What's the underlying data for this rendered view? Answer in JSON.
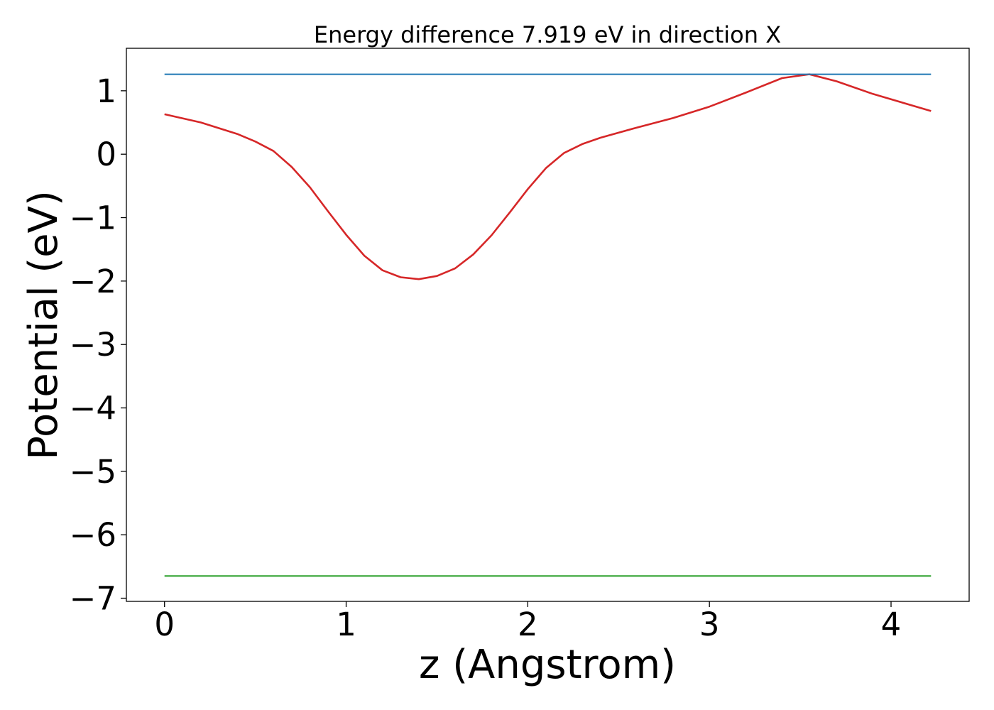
{
  "chart_data": {
    "type": "line",
    "title": "Energy difference 7.919 eV in direction X",
    "xlabel": "z (Angstrom)",
    "ylabel": "Potential (eV)",
    "xlim": [
      -0.21,
      4.43
    ],
    "ylim": [
      -7.05,
      1.67
    ],
    "xticks": [
      0,
      1,
      2,
      3,
      4
    ],
    "xtick_labels": [
      "0",
      "1",
      "2",
      "3",
      "4"
    ],
    "yticks": [
      1,
      0,
      -1,
      -2,
      -3,
      -4,
      -5,
      -6,
      -7
    ],
    "ytick_labels": [
      "1",
      "0",
      "−1",
      "−2",
      "−3",
      "−4",
      "−5",
      "−6",
      "−7"
    ],
    "grid": false,
    "legend": "none",
    "series": [
      {
        "color": "#d62728",
        "x": [
          0,
          0.2,
          0.4,
          0.5,
          0.6,
          0.7,
          0.8,
          0.9,
          1.0,
          1.1,
          1.2,
          1.3,
          1.4,
          1.5,
          1.6,
          1.7,
          1.8,
          1.9,
          2.0,
          2.1,
          2.2,
          2.3,
          2.4,
          2.6,
          2.8,
          3.0,
          3.2,
          3.4,
          3.55,
          3.7,
          3.9,
          4.22
        ],
        "y": [
          0.63,
          0.5,
          0.32,
          0.2,
          0.05,
          -0.2,
          -0.52,
          -0.9,
          -1.27,
          -1.6,
          -1.83,
          -1.94,
          -1.97,
          -1.92,
          -1.8,
          -1.58,
          -1.28,
          -0.92,
          -0.55,
          -0.22,
          0.02,
          0.16,
          0.26,
          0.42,
          0.57,
          0.75,
          0.97,
          1.2,
          1.26,
          1.15,
          0.95,
          0.68
        ]
      },
      {
        "color": "#1f77b4",
        "x": [
          0,
          4.22
        ],
        "y": [
          1.26,
          1.26
        ]
      },
      {
        "color": "#2ca02c",
        "x": [
          0,
          4.22
        ],
        "y": [
          -6.65,
          -6.65
        ]
      }
    ]
  },
  "colors": {
    "axis": "#000000",
    "background": "#ffffff"
  }
}
